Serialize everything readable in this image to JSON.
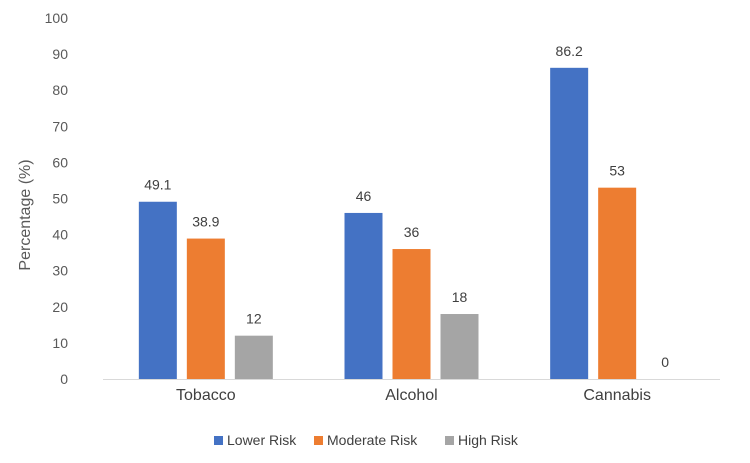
{
  "chart_data": {
    "type": "bar",
    "title": "",
    "xlabel": "",
    "ylabel": "Percentage (%)",
    "ylim": [
      0,
      100
    ],
    "yticks": [
      0,
      10,
      20,
      30,
      40,
      50,
      60,
      70,
      80,
      90,
      100
    ],
    "grid": false,
    "legend_position": "bottom",
    "categories": [
      "Tobacco",
      "Alcohol",
      "Cannabis"
    ],
    "series": [
      {
        "name": "Lower Risk",
        "color": "#4472C4",
        "values": [
          49.1,
          46,
          86.2
        ],
        "labels": [
          "49.1",
          "46",
          "86.2"
        ]
      },
      {
        "name": "Moderate Risk",
        "color": "#ED7D31",
        "values": [
          38.9,
          36,
          53
        ],
        "labels": [
          "38.9",
          "36",
          "53"
        ]
      },
      {
        "name": "High Risk",
        "color": "#A5A5A5",
        "values": [
          12,
          18,
          0
        ],
        "labels": [
          "12",
          "18",
          "0"
        ]
      }
    ]
  }
}
